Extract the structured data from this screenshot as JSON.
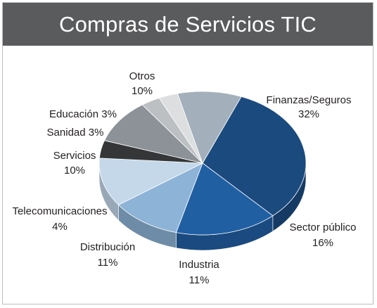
{
  "title": "Compras de Servicios TIC",
  "chart_data": {
    "type": "pie",
    "title": "Compras de Servicios TIC",
    "slices": [
      {
        "name": "Finanzas/Seguros",
        "value": 32,
        "label": "32%",
        "color": "#1b4a7f"
      },
      {
        "name": "Sector público",
        "value": 16,
        "label": "16%",
        "color": "#215fa3"
      },
      {
        "name": "Industria",
        "value": 11,
        "label": "11%",
        "color": "#8db3d6"
      },
      {
        "name": "Distribución",
        "value": 11,
        "label": "11%",
        "color": "#c4d8ea"
      },
      {
        "name": "Telecomunicaciones",
        "value": 4,
        "label": "4%",
        "color": "#343638"
      },
      {
        "name": "Servicios",
        "value": 10,
        "label": "10%",
        "color": "#8c9297"
      },
      {
        "name": "Sanidad",
        "value": 3,
        "label": "3%",
        "color": "#bcc0c3"
      },
      {
        "name": "Educación",
        "value": 3,
        "label": "3%",
        "color": "#dcdee0"
      },
      {
        "name": "Otros",
        "value": 10,
        "label": "10%",
        "color": "#a3b0bb"
      }
    ]
  }
}
